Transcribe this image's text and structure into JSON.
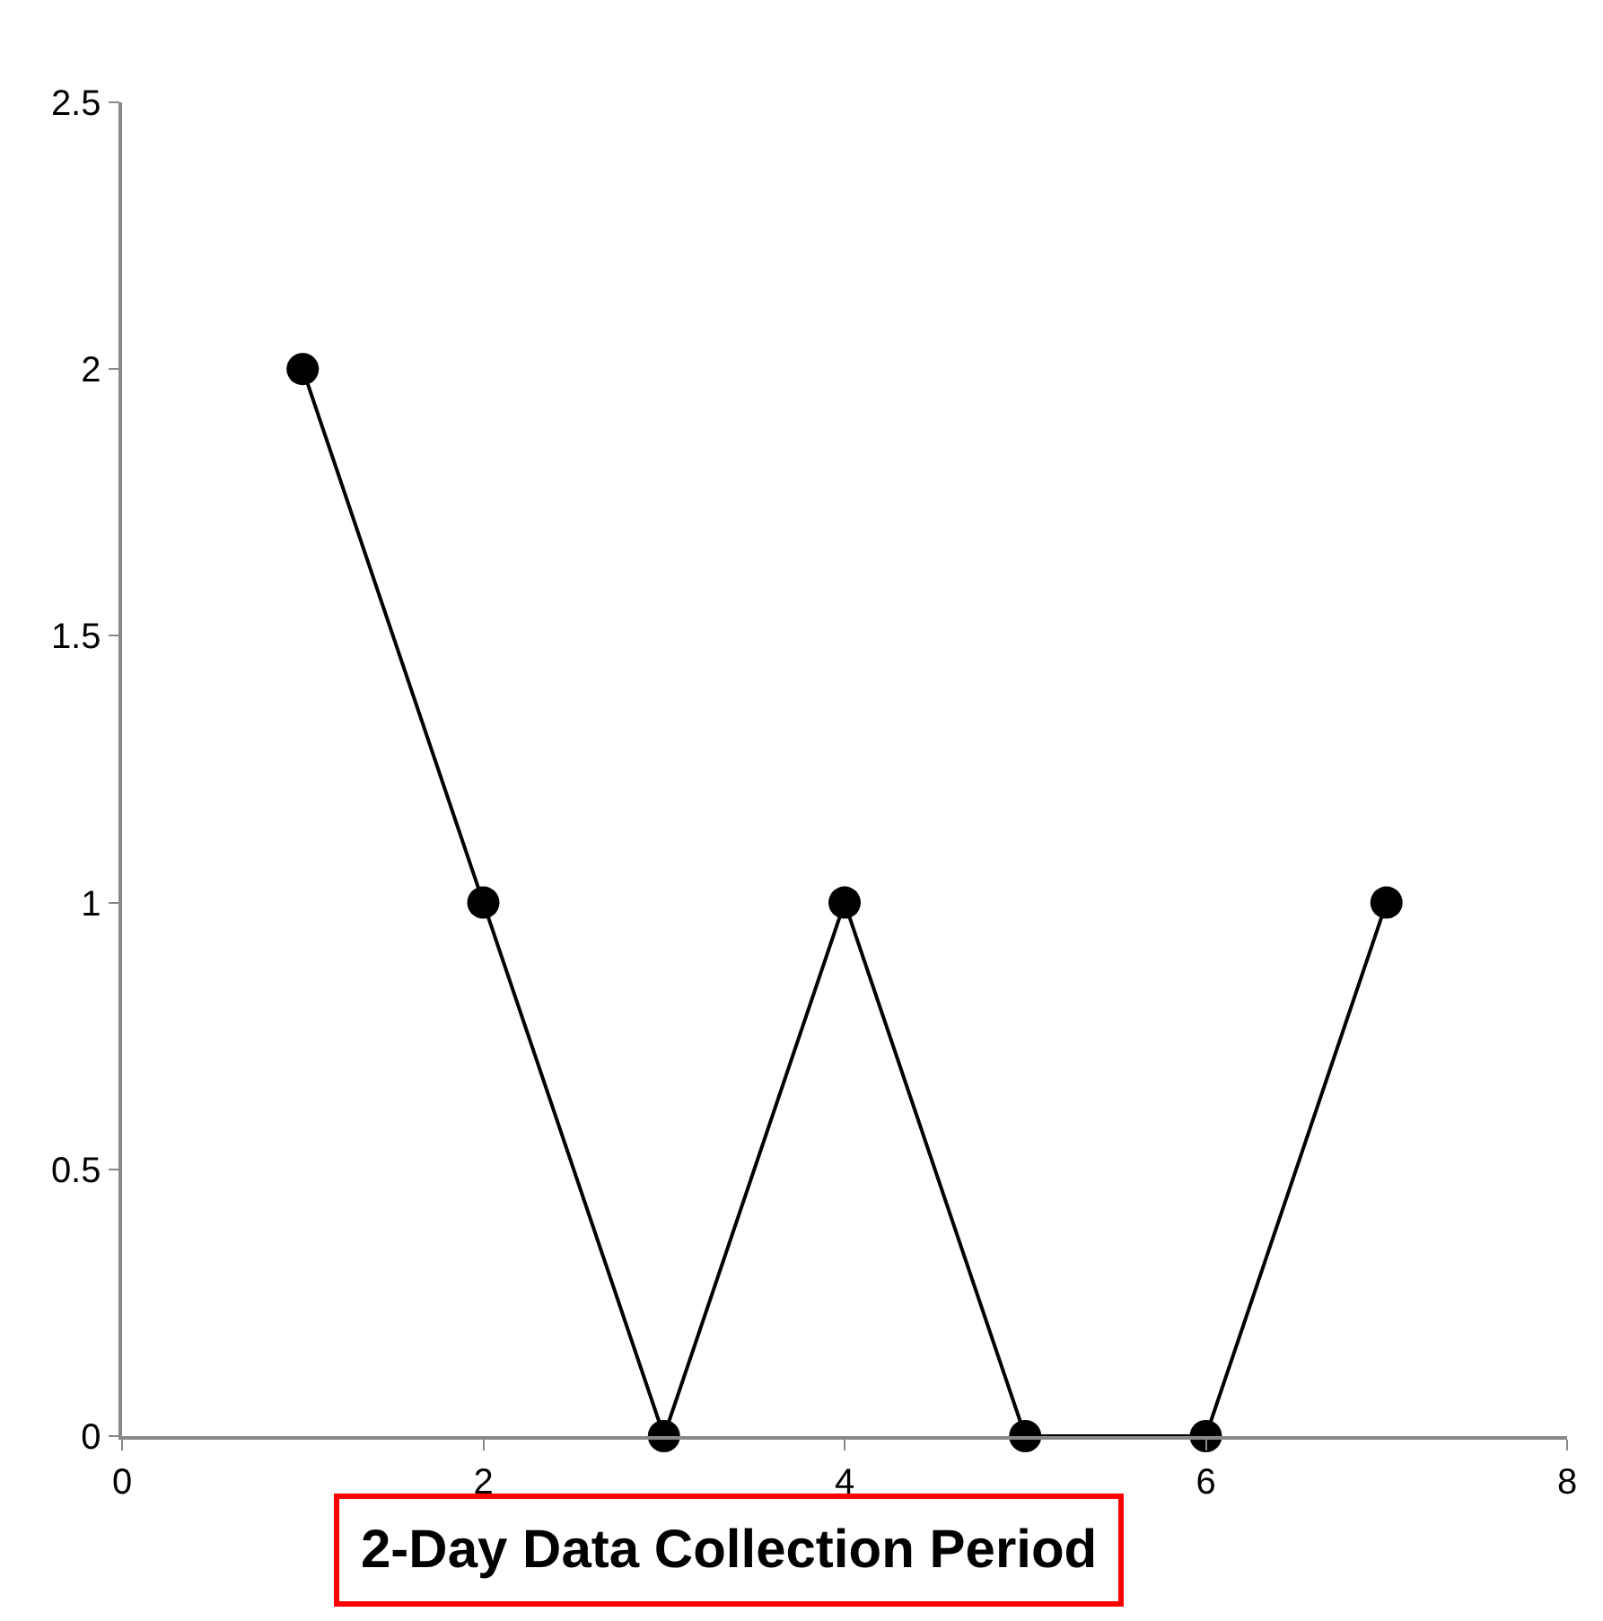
{
  "chart_data": {
    "type": "line",
    "xlabel": "2-Day Data Collection Period",
    "x": [
      1,
      2,
      3,
      4,
      5,
      6,
      7
    ],
    "series": [
      {
        "color": "#000000",
        "values": [
          2,
          1,
          0,
          1,
          0,
          0,
          1
        ]
      }
    ],
    "xlim": [
      0,
      8
    ],
    "xticks": [
      0,
      2,
      4,
      6,
      8
    ],
    "ylim": [
      0,
      2.5
    ],
    "yticks": [
      0,
      0.5,
      1,
      1.5,
      2,
      2.5
    ],
    "grid": false,
    "marker": "circle",
    "line_style": "solid"
  }
}
